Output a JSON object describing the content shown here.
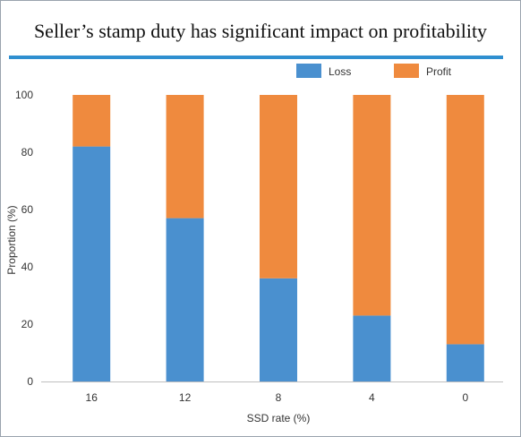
{
  "chart_data": {
    "type": "bar",
    "stacked": true,
    "title": "Seller’s stamp duty has significant impact on profitability",
    "xlabel": "SSD rate (%)",
    "ylabel": "Proportion (%)",
    "categories": [
      "16",
      "12",
      "8",
      "4",
      "0"
    ],
    "series": [
      {
        "name": "Loss",
        "color": "#4a90cf",
        "values": [
          82,
          57,
          36,
          23,
          13
        ]
      },
      {
        "name": "Profit",
        "color": "#ef8a3e",
        "values": [
          18,
          43,
          64,
          77,
          87
        ]
      }
    ],
    "ylim": [
      0,
      100
    ],
    "yticks": [
      0,
      20,
      40,
      60,
      80,
      100
    ],
    "grid": false,
    "legend_position": "top-right"
  }
}
